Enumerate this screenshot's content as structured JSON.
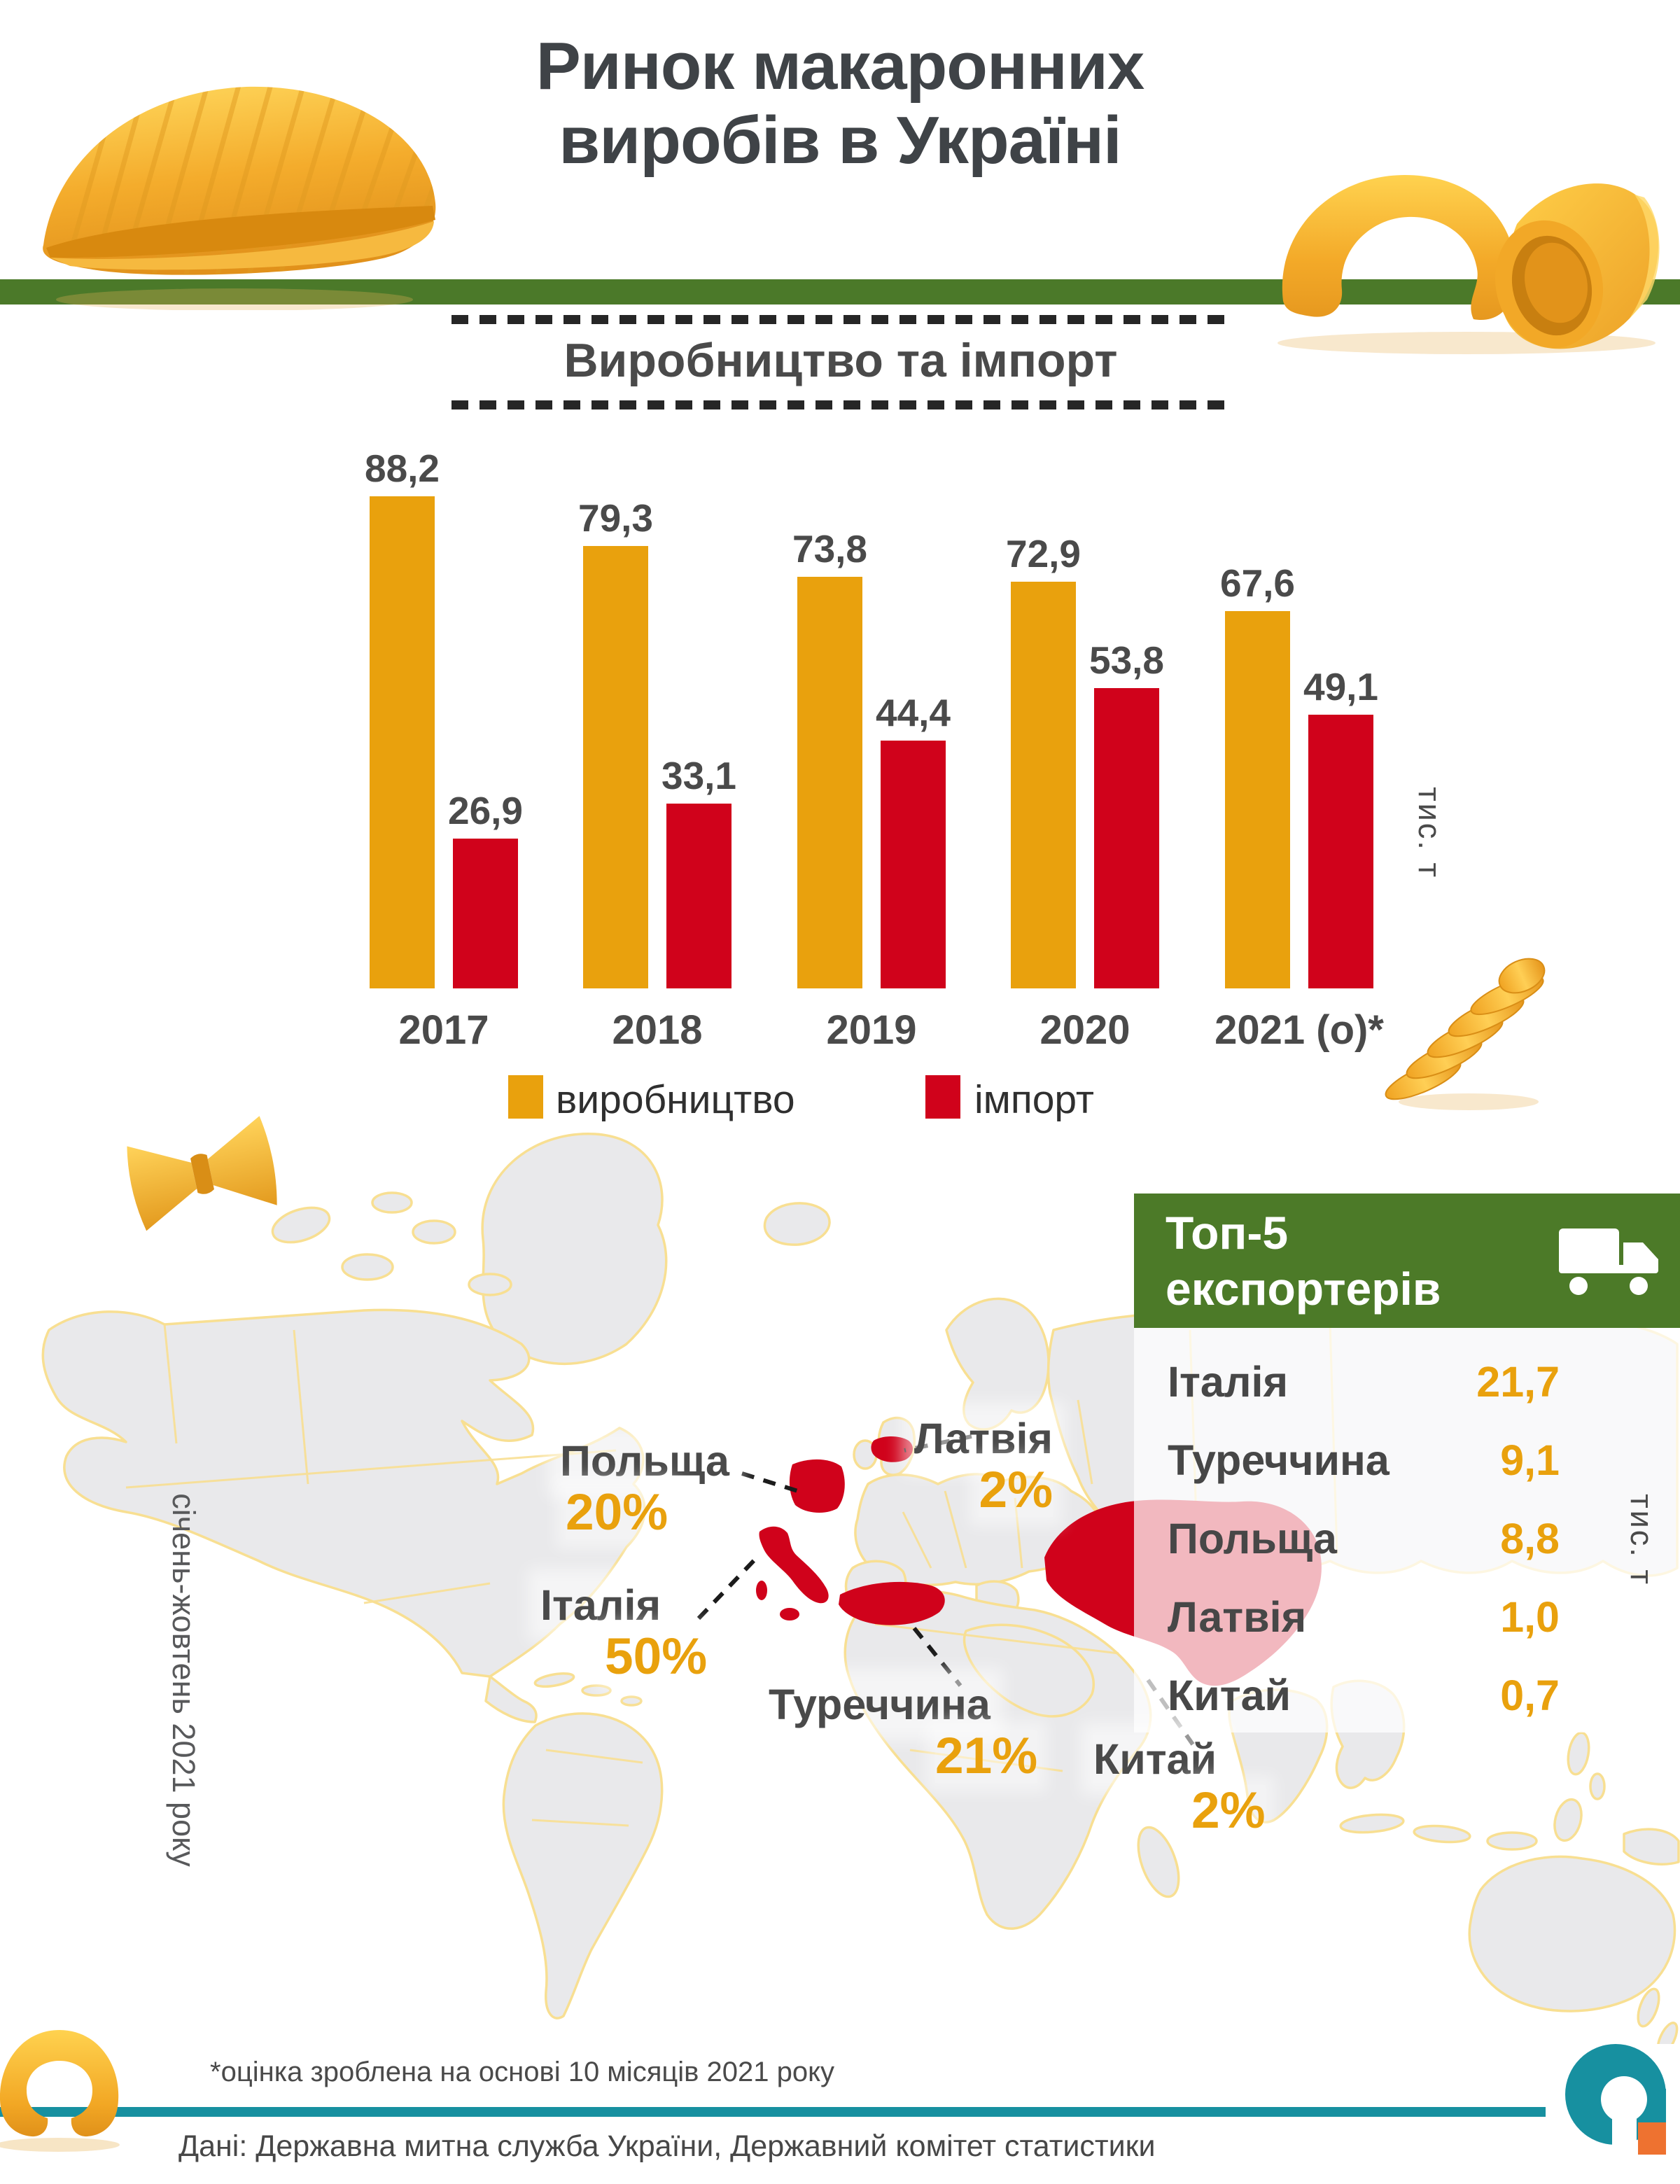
{
  "title": {
    "line1": "Ринок макаронних",
    "line2": "виробів в Україні"
  },
  "production_import": {
    "heading": "Виробництво та імпорт",
    "unit_label": "тис. т"
  },
  "chart_data": {
    "type": "bar",
    "title": "Виробництво та імпорт",
    "categories": [
      "2017",
      "2018",
      "2019",
      "2020",
      "2021 (о)*"
    ],
    "series": [
      {
        "name": "виробництво",
        "color": "#e9a10d",
        "values": [
          88.2,
          79.3,
          73.8,
          72.9,
          67.6
        ]
      },
      {
        "name": "імпорт",
        "color": "#d0021b",
        "values": [
          26.9,
          33.1,
          44.4,
          53.8,
          49.1
        ]
      }
    ],
    "value_labels": [
      [
        "88,2",
        "79,3",
        "73,8",
        "72,9",
        "67,6"
      ],
      [
        "26,9",
        "33,1",
        "44,4",
        "53,8",
        "49,1"
      ]
    ],
    "ylabel": "тис. т",
    "ylim": [
      0,
      95
    ],
    "grid": false,
    "legend_position": "bottom"
  },
  "exporters": {
    "heading_line1": "Топ-5",
    "heading_line2": "експортерів",
    "unit_label": "тис. т",
    "icon": "truck-icon",
    "rows": [
      {
        "country": "Італія",
        "value": "21,7"
      },
      {
        "country": "Туреччина",
        "value": "9,1"
      },
      {
        "country": "Польща",
        "value": "8,8"
      },
      {
        "country": "Латвія",
        "value": "1,0"
      },
      {
        "country": "Китай",
        "value": "0,7"
      }
    ]
  },
  "map": {
    "period_note": "січень-жовтень 2021 року",
    "labels": [
      {
        "country": "Польща",
        "percent": "20%"
      },
      {
        "country": "Латвія",
        "percent": "2%"
      },
      {
        "country": "Італія",
        "percent": "50%"
      },
      {
        "country": "Туреччина",
        "percent": "21%"
      },
      {
        "country": "Китай",
        "percent": "2%"
      }
    ],
    "highlighted_countries": [
      "Польща",
      "Латвія",
      "Італія",
      "Туреччина",
      "Китай"
    ]
  },
  "footer": {
    "footnote": "*оцінка зроблена на основі 10 місяців 2021 року",
    "source": "Дані: Державна митна служба України, Державний комітет статистики"
  },
  "colors": {
    "accent_orange": "#e9a10d",
    "accent_red": "#d0021b",
    "band_green": "#4b7929",
    "panel_green": "#4c7a28",
    "teal": "#1790a0",
    "logo_orange": "#ee7230",
    "text_dark": "#474747",
    "map_land": "#e9e9eb",
    "map_border": "#f8df92"
  }
}
